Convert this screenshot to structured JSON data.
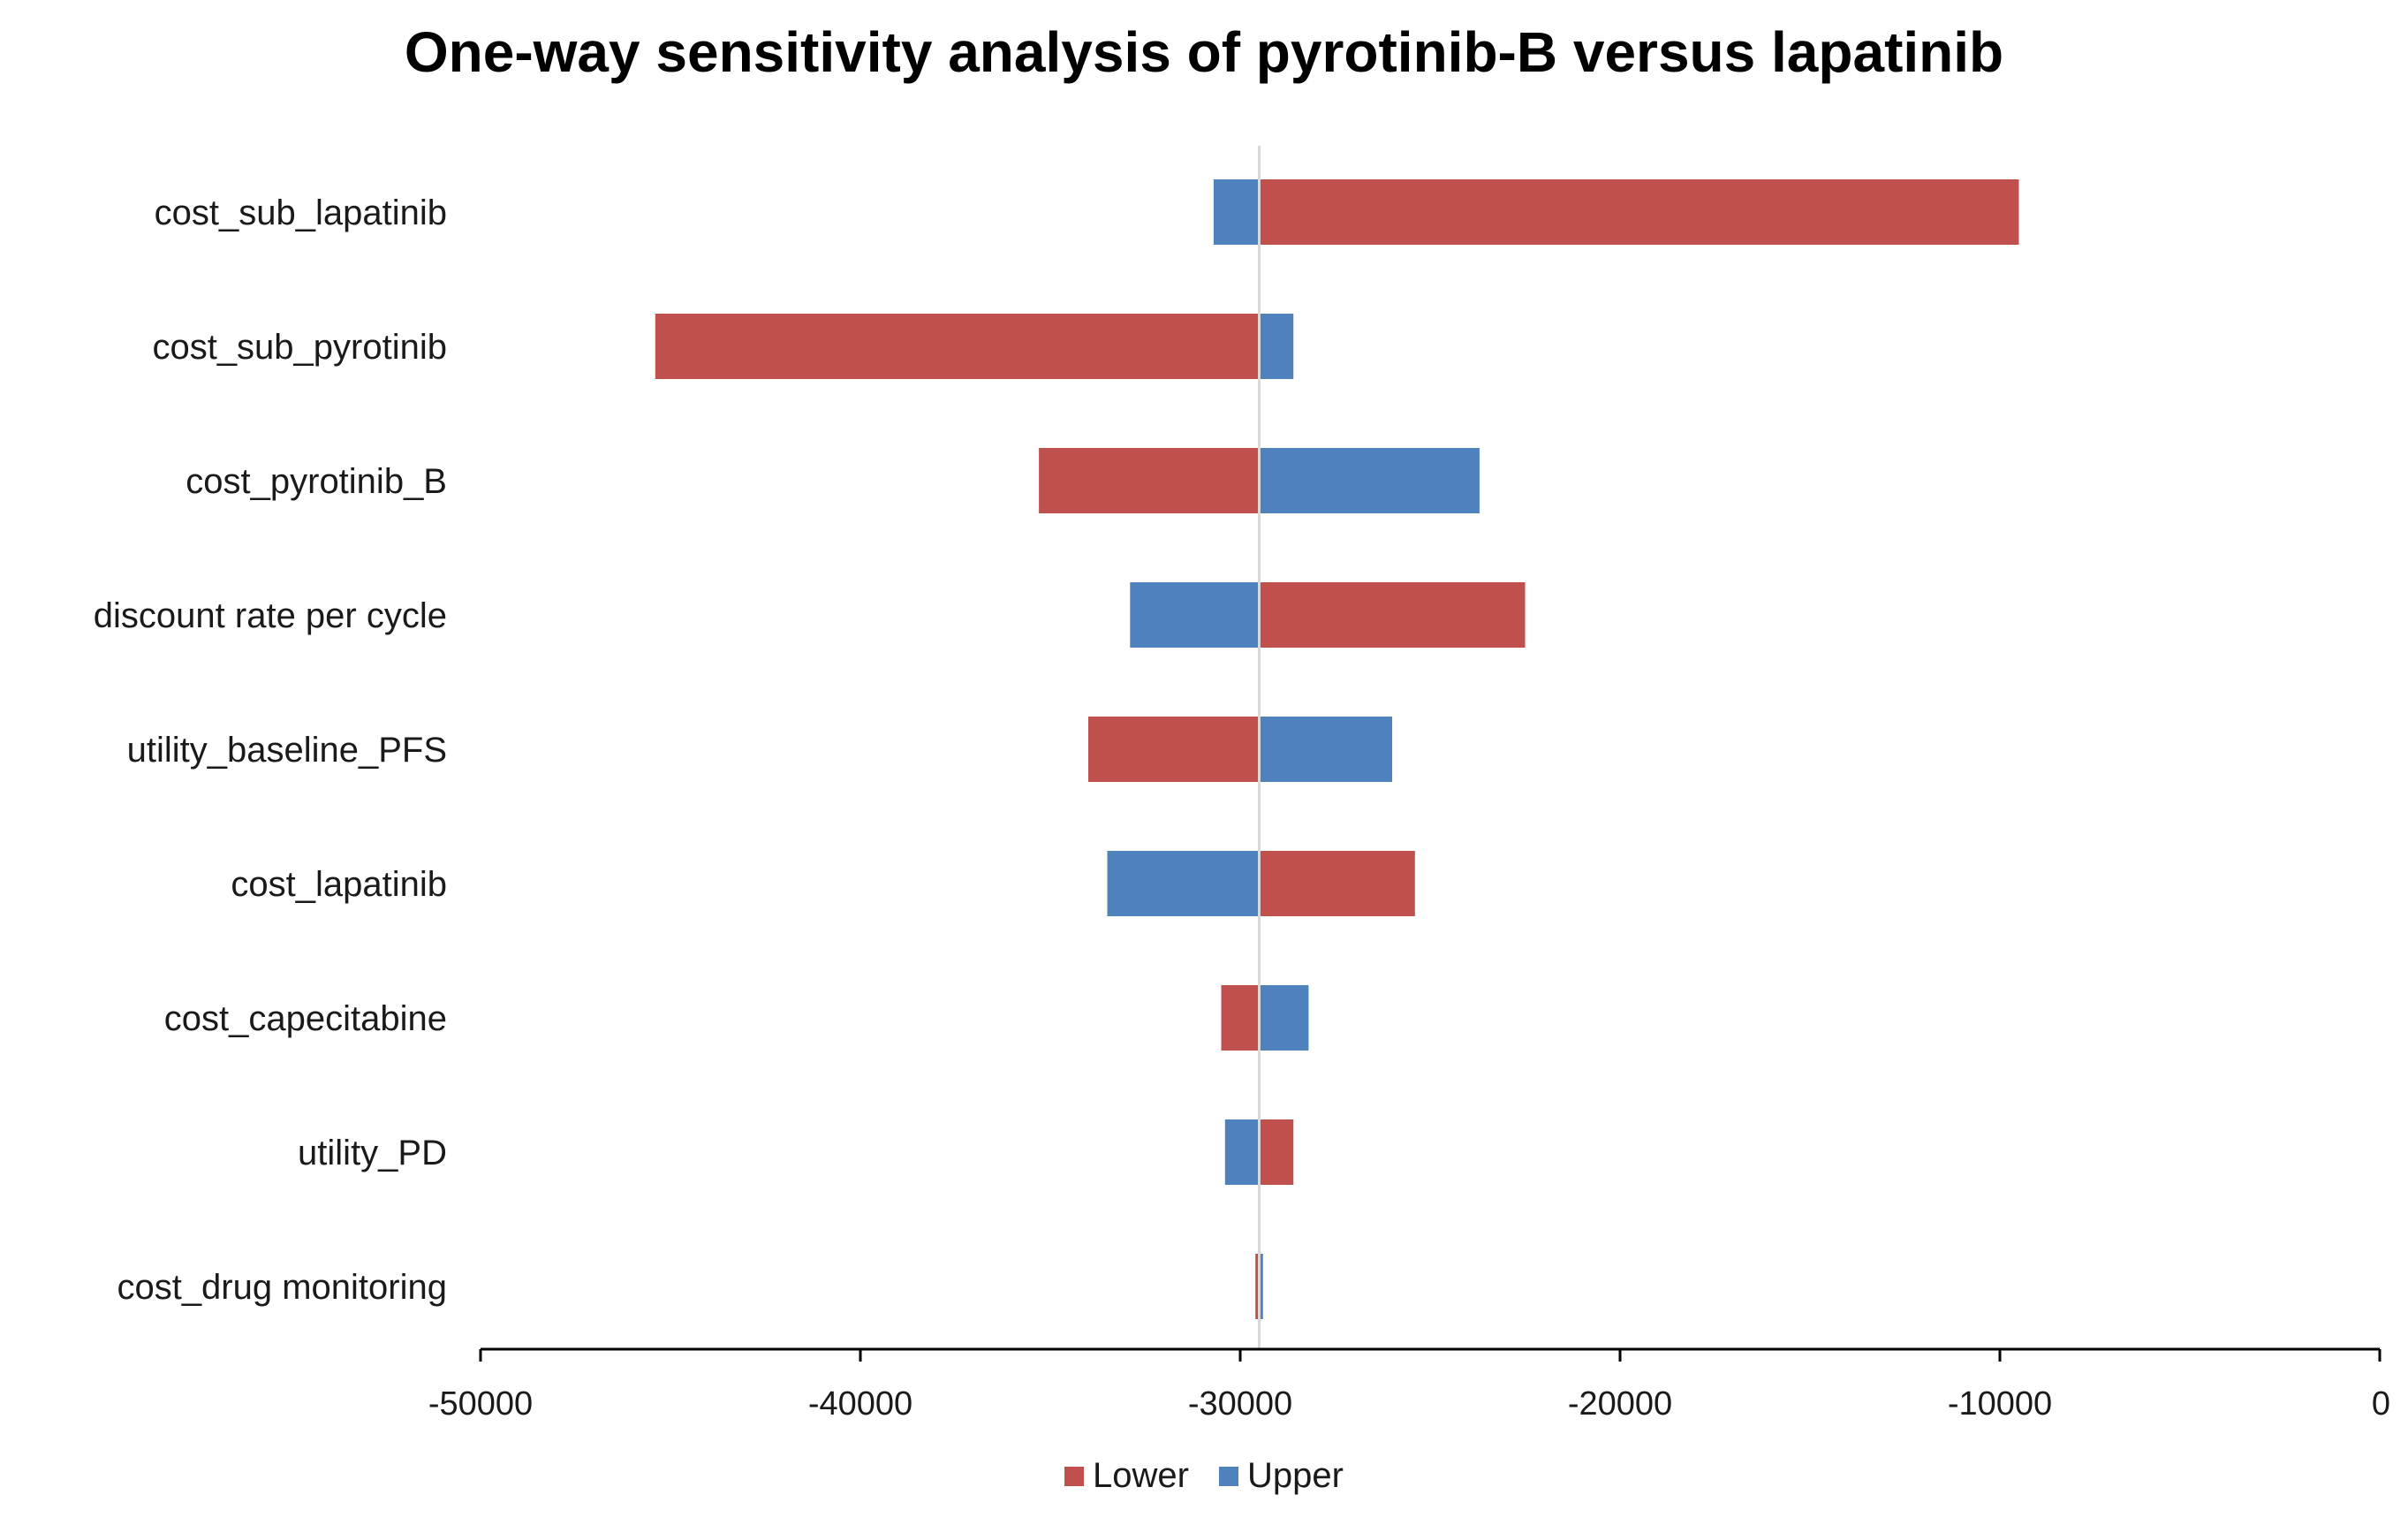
{
  "chart_data": {
    "type": "bar",
    "subtype": "tornado",
    "orientation": "horizontal",
    "title": "One-way sensitivity analysis of pyrotinib-B versus lapatinib",
    "xlabel": "",
    "ylabel": "",
    "baseline": -29500,
    "xlim": [
      -50000,
      0
    ],
    "x_ticks": [
      "-50000",
      "-40000",
      "-30000",
      "-20000",
      "-10000",
      "0"
    ],
    "x_tick_values": [
      -50000,
      -40000,
      -30000,
      -20000,
      -10000,
      0
    ],
    "categories": [
      "cost_sub_lapatinib",
      "cost_sub_pyrotinib",
      "cost_pyrotinib_B",
      "discount rate per cycle",
      "utility_baseline_PFS",
      "cost_lapatinib",
      "cost_capecitabine",
      "utility_PD",
      "cost_drug monitoring"
    ],
    "series": [
      {
        "name": "Lower",
        "color": "#c0504d",
        "values": [
          -9500,
          -45400,
          -35300,
          -22500,
          -34000,
          -25400,
          -30500,
          -28600,
          -29600
        ]
      },
      {
        "name": "Upper",
        "color": "#4f81bd",
        "values": [
          -30700,
          -28600,
          -23700,
          -32900,
          -26000,
          -33500,
          -28200,
          -30400,
          -29400
        ]
      }
    ],
    "legend_position": "bottom",
    "grid": false
  }
}
